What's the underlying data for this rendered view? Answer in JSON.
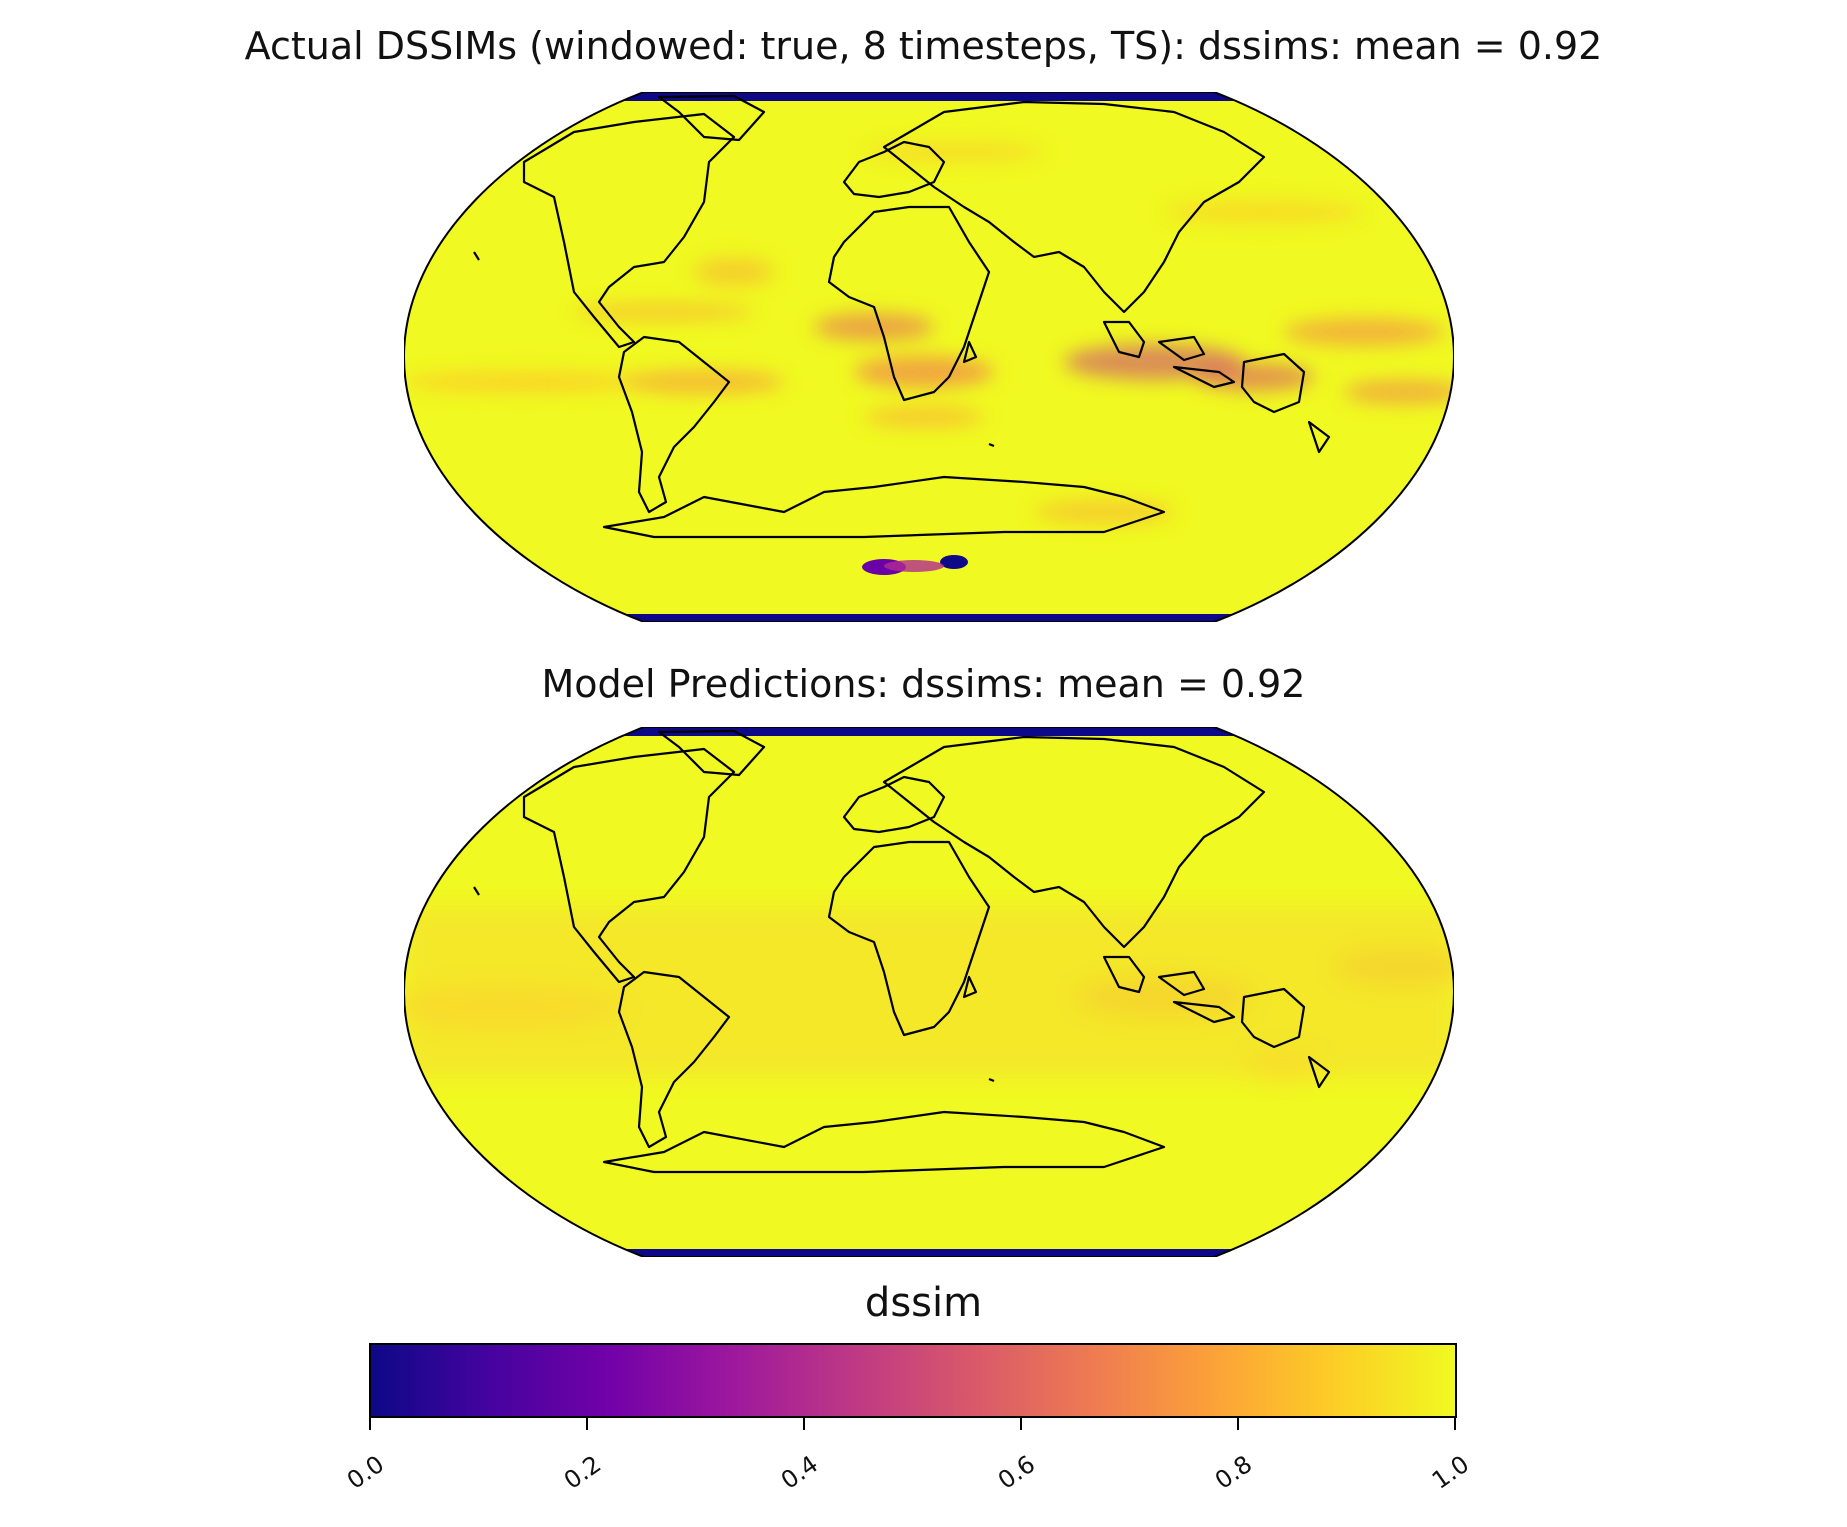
{
  "panels": [
    {
      "title": "Actual DSSIMs (windowed: true, 8 timesteps, TS): dssims: mean = 0.92"
    },
    {
      "title": "Model Predictions: dssims: mean = 0.92"
    }
  ],
  "map": {
    "projection": "Robinson",
    "variable": "dssim",
    "colormap": "plasma",
    "coastlines": true
  },
  "colorbar": {
    "label": "dssim",
    "range": [
      0.0,
      1.0
    ],
    "ticks": [
      "0.0",
      "0.2",
      "0.4",
      "0.6",
      "0.8",
      "1.0"
    ],
    "colors": {
      "low": "#0d0887",
      "mid": "#cc4778",
      "high": "#f0f921"
    }
  }
}
